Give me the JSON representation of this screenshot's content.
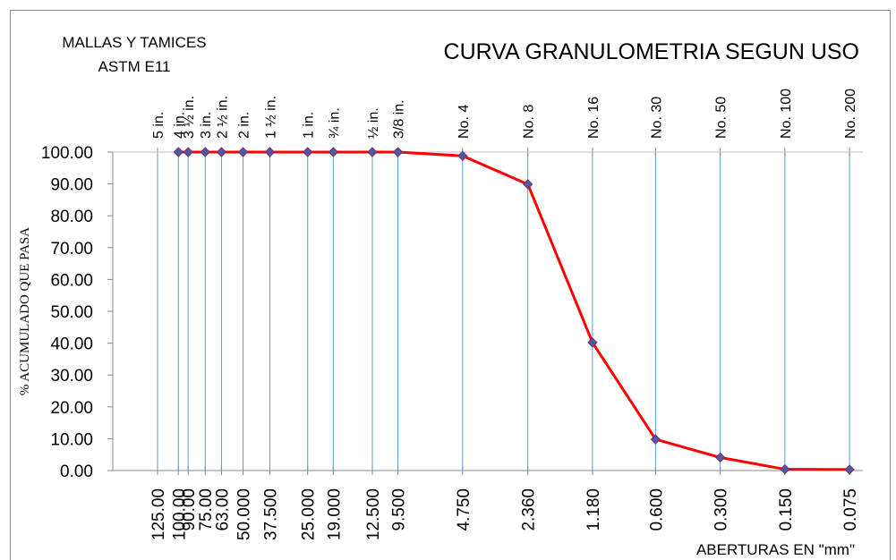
{
  "chart_data": {
    "type": "line",
    "title": "CURVA GRANULOMETRIA SEGUN USO",
    "subtitle": [
      "MALLAS Y TAMICES",
      "ASTM E11"
    ],
    "y_label": "% ACUMULADO QUE PASA",
    "x_label": "ABERTURAS EN \"mm\"",
    "log_x": true,
    "x_reversed": true,
    "grid": true,
    "xlim": [
      202,
      0.065
    ],
    "ylim": [
      0,
      100
    ],
    "xticks": [
      {
        "value": 125,
        "label": "125.00"
      },
      {
        "value": 100,
        "label": "100.00"
      },
      {
        "value": 90,
        "label": "90.00"
      },
      {
        "value": 75,
        "label": "75.00"
      },
      {
        "value": 63,
        "label": "63.00"
      },
      {
        "value": 50,
        "label": "50.000"
      },
      {
        "value": 37.5,
        "label": "37.500"
      },
      {
        "value": 25,
        "label": "25.000"
      },
      {
        "value": 19,
        "label": "19.000"
      },
      {
        "value": 12.5,
        "label": "12.500"
      },
      {
        "value": 9.5,
        "label": "9.500"
      },
      {
        "value": 4.75,
        "label": "4.750"
      },
      {
        "value": 2.36,
        "label": "2.360"
      },
      {
        "value": 1.18,
        "label": "1.180"
      },
      {
        "value": 0.6,
        "label": "0.600"
      },
      {
        "value": 0.3,
        "label": "0.300"
      },
      {
        "value": 0.15,
        "label": "0.150"
      },
      {
        "value": 0.075,
        "label": "0.075"
      }
    ],
    "sieve_labels": [
      "5 in.",
      "4 in.",
      "3 ½ in.",
      "3 in.",
      "2 ½ in.",
      "2 in.",
      "1 ½ in.",
      "1 in.",
      "¾ in.",
      "½ in.",
      "3/8 in.",
      "No. 4",
      "No. 8",
      "No. 16",
      "No. 30",
      "No. 50",
      "No. 100",
      "No. 200"
    ],
    "yticks": [
      {
        "value": 0,
        "label": "0.00"
      },
      {
        "value": 10,
        "label": "10.00"
      },
      {
        "value": 20,
        "label": "20.00"
      },
      {
        "value": 30,
        "label": "30.00"
      },
      {
        "value": 40,
        "label": "40.00"
      },
      {
        "value": 50,
        "label": "50.00"
      },
      {
        "value": 60,
        "label": "60.00"
      },
      {
        "value": 70,
        "label": "70.00"
      },
      {
        "value": 80,
        "label": "80.00"
      },
      {
        "value": 90,
        "label": "90.00"
      },
      {
        "value": 100,
        "label": "100.00"
      }
    ],
    "x": [
      100,
      90,
      75,
      63,
      50,
      37.5,
      25,
      19,
      12.5,
      9.5,
      4.75,
      2.36,
      1.18,
      0.6,
      0.3,
      0.15,
      0.075
    ],
    "values": [
      100,
      100,
      100,
      100,
      100,
      100,
      100,
      100,
      100,
      100,
      98.8,
      89.9,
      40.2,
      9.8,
      4.1,
      0.4,
      0.3
    ],
    "color": "#ff0000",
    "marker_color": "#4a5aa8",
    "grid_color": "#5b9bd5"
  }
}
